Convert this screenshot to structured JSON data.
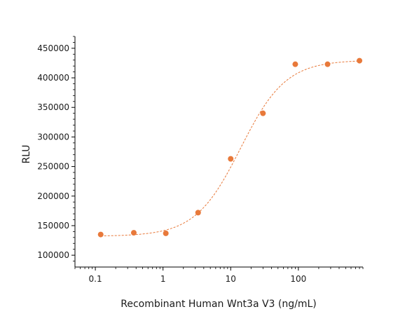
{
  "chart_data": {
    "type": "scatter",
    "xlabel": "Recombinant Human Wnt3a V3 (ng/mL)",
    "ylabel": "RLU",
    "xscale": "log",
    "xlim": [
      0.05,
      900
    ],
    "ylim": [
      80000,
      470000
    ],
    "grid": false,
    "color": "#E8793A",
    "x_ticks": [
      0.1,
      1,
      10,
      100
    ],
    "x_tick_labels": [
      "0.1",
      "1",
      "10",
      "100"
    ],
    "y_ticks": [
      100000,
      150000,
      200000,
      250000,
      300000,
      350000,
      400000,
      450000
    ],
    "y_tick_labels": [
      "100000",
      "150000",
      "200000",
      "250000",
      "300000",
      "350000",
      "400000",
      "450000"
    ],
    "points": [
      {
        "x": 0.12,
        "y": 135000
      },
      {
        "x": 0.37,
        "y": 138000
      },
      {
        "x": 1.1,
        "y": 137000
      },
      {
        "x": 3.3,
        "y": 172000
      },
      {
        "x": 10,
        "y": 263000
      },
      {
        "x": 30,
        "y": 340000
      },
      {
        "x": 90,
        "y": 423000
      },
      {
        "x": 270,
        "y": 423000
      },
      {
        "x": 800,
        "y": 429000
      }
    ],
    "fit": {
      "type": "4PL",
      "bottom": 132000,
      "top": 430000,
      "ec50": 14,
      "hill": 1.3
    }
  }
}
